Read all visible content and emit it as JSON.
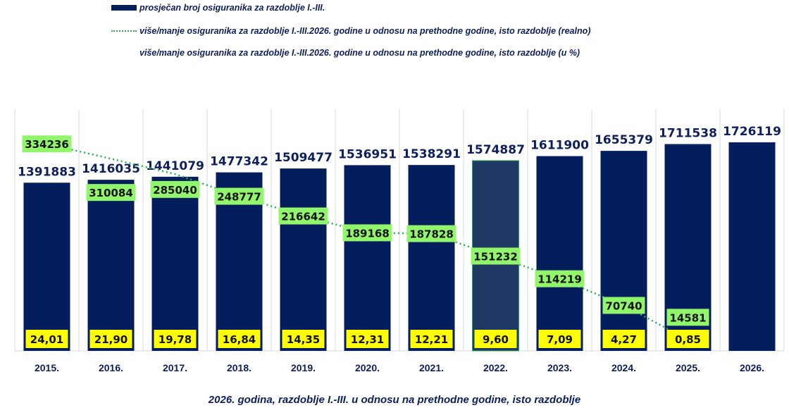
{
  "chart_data": {
    "type": "bar",
    "title": "2026. godina, razdoblje I.-III. u odnosu na prethodne godine, isto razdoblje",
    "categories": [
      "2015.",
      "2016.",
      "2017.",
      "2018.",
      "2019.",
      "2020.",
      "2021.",
      "2022.",
      "2023.",
      "2024.",
      "2025.",
      "2026."
    ],
    "series": [
      {
        "name": "prosječan broj osiguranika za razdoblje I.-III.",
        "type": "bar",
        "color": "#041d5c",
        "values": [
          1391883,
          1416035,
          1441079,
          1477342,
          1509477,
          1536951,
          1538291,
          1574887,
          1611900,
          1655379,
          1711538,
          1726119
        ]
      },
      {
        "name": "više/manje osiguranika za razdoblje I.-III.2026. godine u odnosu na prethodne godine, isto razdoblje (realno)",
        "type": "line",
        "color": "#21b24b",
        "values": [
          334236,
          310084,
          285040,
          248777,
          216642,
          189168,
          187828,
          151232,
          114219,
          70740,
          14581,
          null
        ]
      },
      {
        "name": "više/manje osiguranika za razdoblje I.-III.2026. godine u odnosu na prethodne godine, isto razdoblje (u %)",
        "type": "label",
        "color": "#ffff00",
        "values": [
          "24,01",
          "21,90",
          "19,78",
          "16,84",
          "14,35",
          "12,31",
          "12,21",
          "9,60",
          "7,09",
          "4,27",
          "0,85",
          null
        ]
      }
    ],
    "highlight_category": "2022.",
    "ylim": [
      0,
      2000000
    ],
    "grid": "vertical",
    "legend": "top"
  }
}
